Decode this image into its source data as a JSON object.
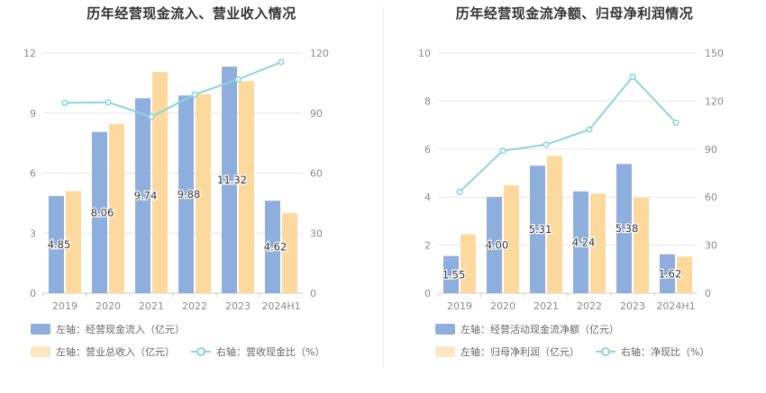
{
  "colors": {
    "bar1": "#8eaedd",
    "bar2": "#fdd99d",
    "line": "#8ad4de",
    "grid": "#e6e6e6",
    "axis_text": "#8a8a8a"
  },
  "chart_data": [
    {
      "type": "bar",
      "title": "历年经营现金流入、营业收入情况",
      "categories": [
        "2019",
        "2020",
        "2021",
        "2022",
        "2023",
        "2024H1"
      ],
      "y_left_ticks": [
        "0",
        "3",
        "6",
        "9",
        "12"
      ],
      "y_right_ticks": [
        "0",
        "30",
        "60",
        "90",
        "120"
      ],
      "ylim_left": [
        0,
        12
      ],
      "ylim_right": [
        0,
        120
      ],
      "series": [
        {
          "name": "左轴：经营现金流入（亿元）",
          "axis": "left",
          "kind": "bar",
          "values": [
            4.85,
            8.06,
            9.74,
            9.88,
            11.32,
            4.62
          ],
          "labels": [
            "4.85",
            "8.06",
            "9.74",
            "9.88",
            "11.32",
            "4.62"
          ]
        },
        {
          "name": "左轴：营业总收入（亿元）",
          "axis": "left",
          "kind": "bar",
          "values": [
            5.1,
            8.45,
            11.05,
            9.95,
            10.6,
            4.0
          ]
        },
        {
          "name": "右轴：营收现金比（%）",
          "axis": "right",
          "kind": "line",
          "values": [
            95.1,
            95.4,
            88.1,
            99.3,
            106.8,
            115.5
          ]
        }
      ]
    },
    {
      "type": "bar",
      "title": "历年经营现金流净额、归母净利润情况",
      "categories": [
        "2019",
        "2020",
        "2021",
        "2022",
        "2023",
        "2024H1"
      ],
      "y_left_ticks": [
        "0",
        "2",
        "4",
        "6",
        "8",
        "10"
      ],
      "y_right_ticks": [
        "0",
        "30",
        "60",
        "90",
        "120",
        "150"
      ],
      "ylim_left": [
        0,
        10
      ],
      "ylim_right": [
        0,
        150
      ],
      "series": [
        {
          "name": "左轴：经营活动现金流净额（亿元）",
          "axis": "left",
          "kind": "bar",
          "values": [
            1.55,
            4.0,
            5.31,
            4.24,
            5.38,
            1.62
          ],
          "labels": [
            "1.55",
            "4.00",
            "5.31",
            "4.24",
            "5.38",
            "1.62"
          ]
        },
        {
          "name": "左轴：归母净利润（亿元）",
          "axis": "left",
          "kind": "bar",
          "values": [
            2.45,
            4.5,
            5.72,
            4.15,
            3.98,
            1.52
          ]
        },
        {
          "name": "右轴：净现比（%）",
          "axis": "right",
          "kind": "line",
          "values": [
            63.3,
            89.0,
            92.8,
            102.2,
            135.2,
            106.5
          ]
        }
      ]
    }
  ]
}
